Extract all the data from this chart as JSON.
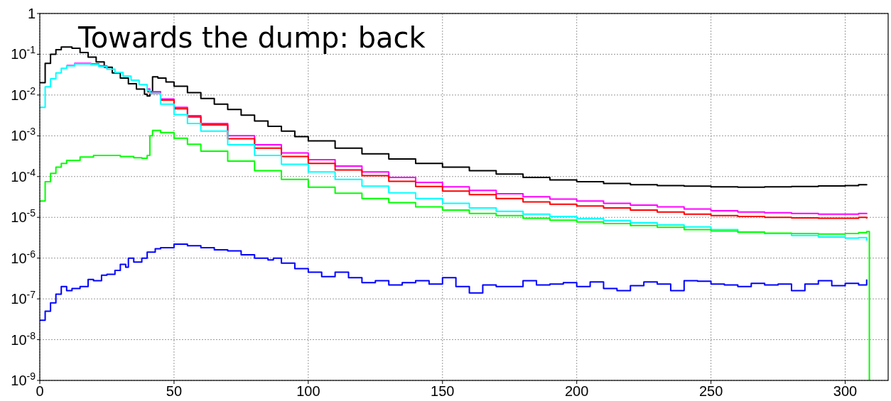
{
  "chart_data": {
    "type": "step",
    "title": "Towards the dump: back",
    "log": "y",
    "grid": true,
    "line_style": "solid",
    "marker": "none",
    "xlim": [
      0,
      316
    ],
    "xticks": [
      0,
      50,
      100,
      150,
      200,
      250,
      300
    ],
    "ylim": [
      1e-09,
      1
    ],
    "yticks": [
      {
        "value": 1,
        "label": "1"
      },
      {
        "value": 0.1,
        "label": "10$^{-1}$"
      },
      {
        "value": 0.01,
        "label": "10$^{-2}$"
      },
      {
        "value": 0.001,
        "label": "10$^{-3}$"
      },
      {
        "value": 0.0001,
        "label": "10$^{-4}$"
      },
      {
        "value": 1e-05,
        "label": "10$^{-5}$"
      },
      {
        "value": 1e-06,
        "label": "10$^{-6}$"
      },
      {
        "value": 1e-07,
        "label": "10$^{-7}$"
      },
      {
        "value": 1e-08,
        "label": "10$^{-8}$"
      },
      {
        "value": 1e-09,
        "label": "10$^{-9}$"
      }
    ],
    "series": [
      {
        "color": "#000000",
        "x": [
          0,
          2,
          4,
          6,
          8,
          10,
          12,
          15,
          18,
          21,
          24,
          27,
          30,
          33,
          36,
          39,
          40,
          41,
          42,
          44,
          47,
          50,
          55,
          60,
          65,
          70,
          75,
          80,
          85,
          90,
          95,
          100,
          110,
          120,
          130,
          140,
          150,
          160,
          170,
          180,
          190,
          200,
          210,
          220,
          230,
          240,
          250,
          260,
          270,
          280,
          290,
          300,
          305,
          308
        ],
        "values": [
          0.02,
          0.06,
          0.1,
          0.13,
          0.15,
          0.15,
          0.14,
          0.11,
          0.085,
          0.065,
          0.048,
          0.035,
          0.026,
          0.019,
          0.014,
          0.0105,
          0.0095,
          0.012,
          0.028,
          0.026,
          0.021,
          0.0165,
          0.0115,
          0.0082,
          0.006,
          0.0044,
          0.0032,
          0.0023,
          0.0017,
          0.0013,
          0.00095,
          0.00075,
          0.0005,
          0.00036,
          0.00027,
          0.00021,
          0.00017,
          0.00014,
          0.000115,
          9.5e-05,
          8.3e-05,
          7.5e-05,
          6.8e-05,
          6.3e-05,
          6e-05,
          5.8e-05,
          5.6e-05,
          5.5e-05,
          5.6e-05,
          5.7e-05,
          5.9e-05,
          6e-05,
          6.3e-05,
          6.5e-05
        ]
      },
      {
        "color": "#ff00ff",
        "x": [
          10,
          13,
          16,
          19,
          22,
          25,
          28,
          31,
          34,
          37,
          40,
          41,
          45,
          50,
          55,
          60,
          70,
          80,
          90,
          100,
          110,
          120,
          130,
          140,
          150,
          160,
          170,
          180,
          190,
          200,
          210,
          220,
          230,
          240,
          250,
          260,
          270,
          280,
          290,
          300,
          305,
          308
        ],
        "values": [
          0.053,
          0.06,
          0.06,
          0.058,
          0.052,
          0.044,
          null,
          null,
          null,
          null,
          0.014,
          0.012,
          0.008,
          0.005,
          0.0031,
          0.002,
          0.001,
          0.0006,
          0.00038,
          0.00026,
          0.00018,
          0.00013,
          9.5e-05,
          7.2e-05,
          5.6e-05,
          4.6e-05,
          3.8e-05,
          3.2e-05,
          2.8e-05,
          2.5e-05,
          2.2e-05,
          2e-05,
          1.8e-05,
          1.6e-05,
          1.45e-05,
          1.35e-05,
          1.3e-05,
          1.25e-05,
          1.2e-05,
          1.2e-05,
          1.25e-05,
          1.2e-05
        ]
      },
      {
        "color": "#ff0000",
        "x": [
          40,
          41,
          45,
          50,
          55,
          60,
          70,
          80,
          90,
          100,
          110,
          120,
          130,
          140,
          150,
          160,
          170,
          180,
          190,
          200,
          210,
          220,
          230,
          240,
          250,
          260,
          270,
          280,
          290,
          300,
          305,
          308
        ],
        "values": [
          0.012,
          0.011,
          0.0075,
          0.0046,
          0.0029,
          0.00185,
          0.00085,
          0.0005,
          0.00031,
          0.00021,
          0.000145,
          0.000105,
          7.6e-05,
          5.7e-05,
          4.4e-05,
          3.6e-05,
          2.9e-05,
          2.4e-05,
          2.1e-05,
          1.9e-05,
          1.7e-05,
          1.5e-05,
          1.35e-05,
          1.2e-05,
          1.1e-05,
          1.05e-05,
          1e-05,
          9.7e-06,
          9.5e-06,
          9.5e-06,
          1e-05,
          9.3e-06
        ]
      },
      {
        "color": "#00ffff",
        "x": [
          0,
          2,
          4,
          6,
          8,
          10,
          13,
          16,
          19,
          22,
          25,
          28,
          31,
          34,
          37,
          40,
          41,
          45,
          50,
          55,
          60,
          70,
          80,
          90,
          100,
          110,
          120,
          130,
          140,
          150,
          160,
          170,
          180,
          190,
          200,
          210,
          220,
          230,
          240,
          250,
          260,
          270,
          280,
          290,
          300,
          305,
          308
        ],
        "values": [
          0.005,
          0.016,
          0.025,
          0.035,
          0.045,
          0.052,
          0.058,
          0.058,
          0.056,
          0.05,
          0.043,
          0.036,
          0.029,
          0.023,
          0.018,
          0.013,
          0.011,
          0.006,
          0.0033,
          0.002,
          0.0013,
          0.0006,
          0.00033,
          0.0002,
          0.00013,
          8.5e-05,
          5.8e-05,
          4e-05,
          2.9e-05,
          2.2e-05,
          1.7e-05,
          1.4e-05,
          1.2e-05,
          1.05e-05,
          9.3e-06,
          8.3e-06,
          7.3e-06,
          6.5e-06,
          5.8e-06,
          5e-06,
          4.4e-06,
          4e-06,
          3.6e-06,
          3.3e-06,
          3.1e-06,
          3.2e-06,
          2.7e-06
        ]
      },
      {
        "color": "#00ff00",
        "x": [
          0,
          2,
          4,
          6,
          8,
          10,
          15,
          20,
          25,
          30,
          35,
          38,
          40,
          41,
          42,
          45,
          50,
          55,
          60,
          70,
          80,
          90,
          100,
          110,
          120,
          130,
          140,
          150,
          160,
          170,
          180,
          190,
          200,
          210,
          220,
          230,
          240,
          250,
          260,
          270,
          280,
          290,
          300,
          305,
          308,
          309
        ],
        "values": [
          2.5e-05,
          7.5e-05,
          0.00012,
          0.00017,
          0.00021,
          0.00025,
          0.0003,
          0.00033,
          0.00033,
          0.00031,
          0.00029,
          0.00028,
          0.00033,
          0.001,
          0.00135,
          0.0012,
          0.00087,
          0.00062,
          0.00042,
          0.00024,
          0.00014,
          8.5e-05,
          5.5e-05,
          3.9e-05,
          2.9e-05,
          2.3e-05,
          1.8e-05,
          1.5e-05,
          1.25e-05,
          1.1e-05,
          9.5e-06,
          8.5e-06,
          7.7e-06,
          7e-06,
          6.3e-06,
          5.7e-06,
          5e-06,
          4.6e-06,
          4.3e-06,
          4.1e-06,
          4e-06,
          3.9e-06,
          4e-06,
          4.2e-06,
          4.5e-06,
          1e-09
        ]
      },
      {
        "color": "#0000ff",
        "x": [
          0,
          2,
          4,
          6,
          8,
          10,
          12,
          15,
          18,
          20,
          23,
          25,
          28,
          30,
          32,
          33,
          35,
          38,
          40,
          43,
          45,
          48,
          50,
          55,
          60,
          65,
          70,
          75,
          80,
          85,
          87,
          90,
          95,
          100,
          105,
          110,
          115,
          120,
          125,
          130,
          135,
          140,
          145,
          150,
          155,
          160,
          165,
          170,
          175,
          180,
          185,
          190,
          195,
          200,
          205,
          210,
          215,
          220,
          225,
          230,
          235,
          240,
          245,
          250,
          255,
          260,
          265,
          270,
          275,
          280,
          285,
          290,
          295,
          300,
          305,
          308
        ],
        "values": [
          3e-08,
          5e-08,
          8e-08,
          1.3e-07,
          2e-07,
          1.6e-07,
          1.8e-07,
          2e-07,
          3e-07,
          2.8e-07,
          3.8e-07,
          4e-07,
          5e-07,
          7e-07,
          6e-07,
          1e-06,
          8e-07,
          1e-06,
          1.4e-06,
          1.7e-06,
          1.8e-06,
          1.8e-06,
          2.2e-06,
          2e-06,
          1.8e-06,
          1.6e-06,
          1.5e-06,
          1.2e-06,
          1e-06,
          9e-07,
          1e-06,
          7.5e-07,
          5.5e-07,
          4.5e-07,
          3.5e-07,
          4.5e-07,
          3.3e-07,
          2.5e-07,
          2.8e-07,
          2.2e-07,
          2.5e-07,
          2.8e-07,
          2.3e-07,
          3.3e-07,
          2e-07,
          1.4e-07,
          2.2e-07,
          2e-07,
          2e-07,
          2.8e-07,
          2.2e-07,
          2.3e-07,
          2.5e-07,
          2e-07,
          2.6e-07,
          1.8e-07,
          1.6e-07,
          2.1e-07,
          2.6e-07,
          2.3e-07,
          1.6e-07,
          2.8e-07,
          2.7e-07,
          2.3e-07,
          2.2e-07,
          2e-07,
          2.4e-07,
          2.2e-07,
          2.3e-07,
          1.6e-07,
          2.3e-07,
          2.8e-07,
          2.1e-07,
          2.4e-07,
          2.2e-07,
          3e-07
        ]
      }
    ]
  }
}
